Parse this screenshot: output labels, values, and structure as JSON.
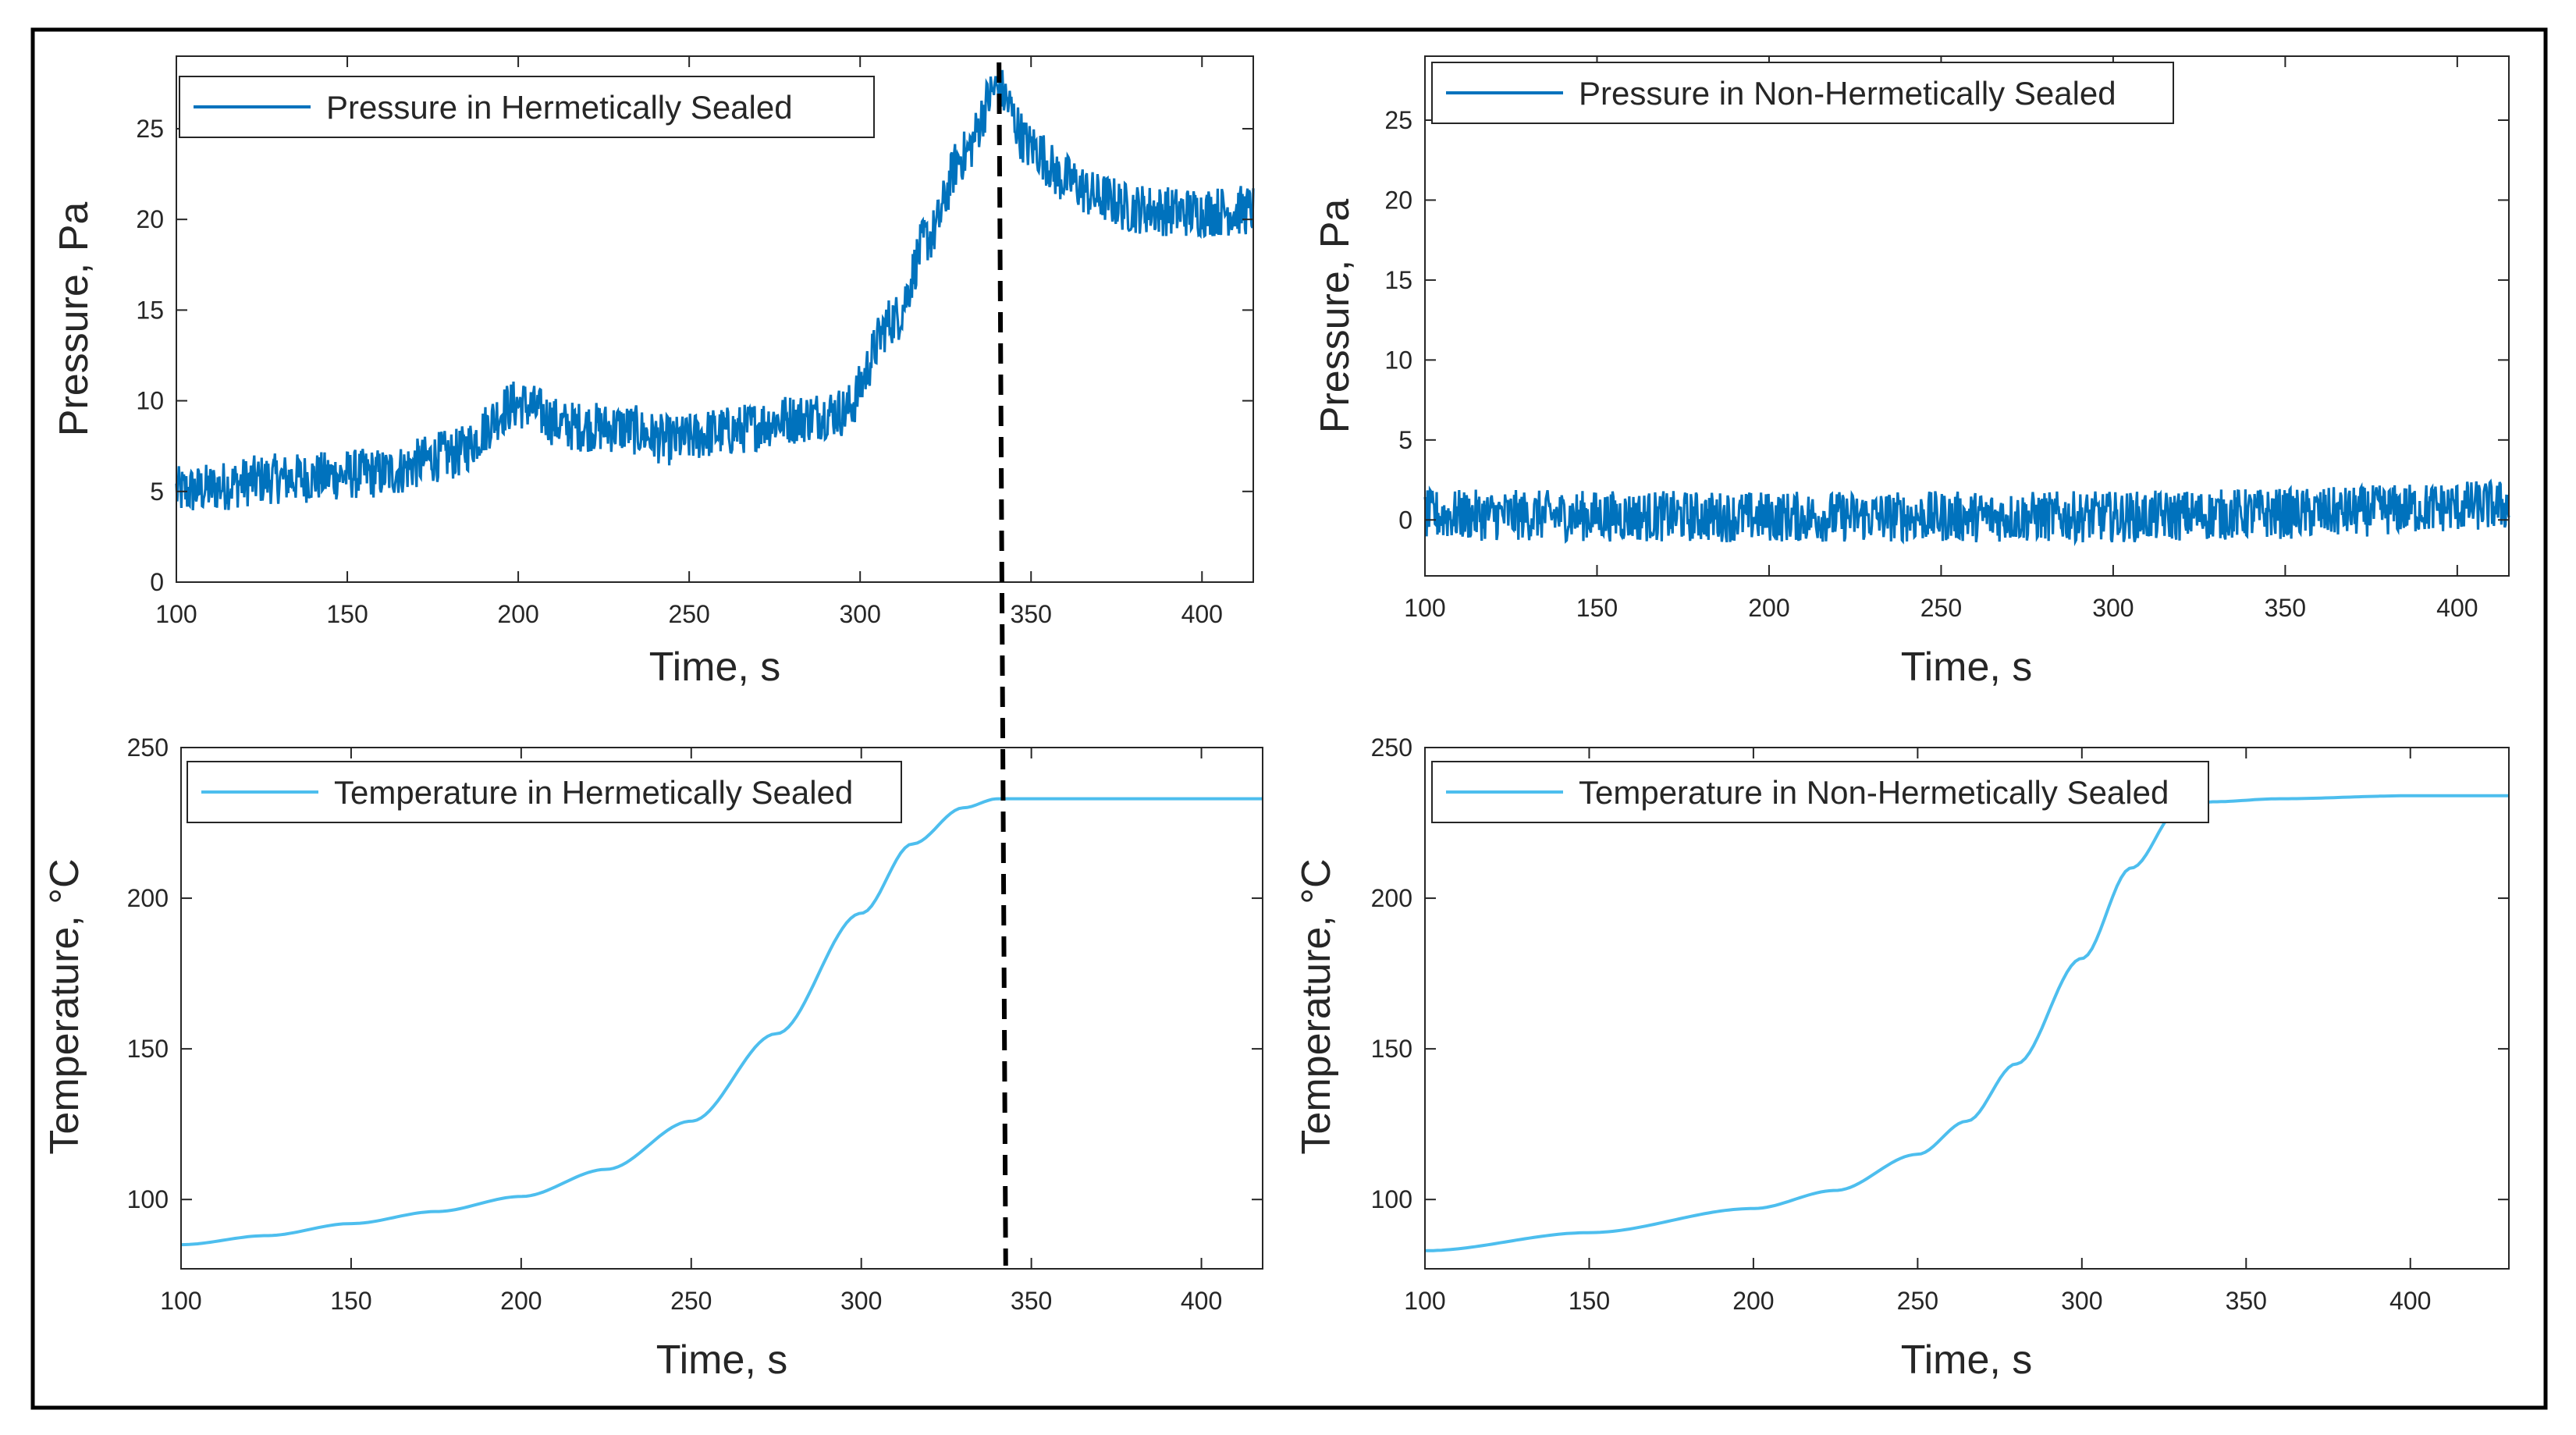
{
  "chart_data": [
    {
      "id": "p1",
      "type": "line",
      "xlabel": "Time, s",
      "ylabel": "Pressure, Pa",
      "xlim": [
        100,
        415
      ],
      "ylim": [
        0,
        29
      ],
      "xticks": [
        "100",
        "150",
        "200",
        "250",
        "300",
        "350",
        "400"
      ],
      "yticks": [
        "0",
        "5",
        "10",
        "15",
        "20",
        "25"
      ],
      "legend_position": "top-left",
      "noise": 1.4,
      "series": [
        {
          "name": "Pressure in Hermetically Sealed",
          "color": "#0072BD",
          "x": [
            100,
            130,
            160,
            180,
            200,
            215,
            230,
            245,
            260,
            280,
            295,
            310,
            320,
            330,
            340,
            350,
            360,
            370,
            380,
            395,
            415
          ],
          "y": [
            5.0,
            5.7,
            6.0,
            7.0,
            9.8,
            8.6,
            8.5,
            7.8,
            8.3,
            9.0,
            9.4,
            14.5,
            19.0,
            23.5,
            27.2,
            24.0,
            22.2,
            21.2,
            20.6,
            20.4,
            20.5
          ]
        }
      ]
    },
    {
      "id": "p2",
      "type": "line",
      "xlabel": "Time, s",
      "ylabel": "Pressure, Pa",
      "xlim": [
        100,
        415
      ],
      "ylim": [
        -3.5,
        29
      ],
      "xticks": [
        "100",
        "150",
        "200",
        "250",
        "300",
        "350",
        "400"
      ],
      "yticks": [
        "0",
        "5",
        "10",
        "15",
        "20",
        "25"
      ],
      "legend_position": "top-left",
      "noise": 1.6,
      "series": [
        {
          "name": "Pressure in Non-Hermetically Sealed",
          "color": "#0072BD",
          "x": [
            100,
            200,
            300,
            350,
            415
          ],
          "y": [
            0.3,
            0.2,
            0.2,
            0.4,
            0.9
          ]
        }
      ]
    },
    {
      "id": "t1",
      "type": "line",
      "xlabel": "Time, s",
      "ylabel": "Temperature, °C",
      "xlim": [
        100,
        418
      ],
      "ylim": [
        77,
        250
      ],
      "xticks": [
        "100",
        "150",
        "200",
        "250",
        "300",
        "350",
        "400"
      ],
      "yticks": [
        "100",
        "150",
        "200",
        "250"
      ],
      "legend_position": "top-left",
      "noise": 0,
      "series": [
        {
          "name": "Temperature in Hermetically Sealed",
          "color": "#4DBEEE",
          "x": [
            100,
            125,
            150,
            175,
            200,
            225,
            250,
            275,
            300,
            315,
            330,
            340,
            360,
            418
          ],
          "y": [
            85,
            88,
            92,
            96,
            101,
            110,
            126,
            155,
            195,
            218,
            230,
            233,
            233,
            233
          ]
        }
      ]
    },
    {
      "id": "t2",
      "type": "line",
      "xlabel": "Time, s",
      "ylabel": "Temperature, °C",
      "xlim": [
        100,
        430
      ],
      "ylim": [
        77,
        250
      ],
      "xticks": [
        "100",
        "150",
        "200",
        "250",
        "300",
        "350",
        "400"
      ],
      "yticks": [
        "100",
        "150",
        "200",
        "250"
      ],
      "legend_position": "top-left",
      "noise": 0,
      "series": [
        {
          "name": "Temperature in Non-Hermetically Sealed",
          "color": "#4DBEEE",
          "x": [
            100,
            150,
            200,
            225,
            250,
            265,
            280,
            300,
            315,
            330,
            340,
            360,
            400,
            430
          ],
          "y": [
            83,
            89,
            97,
            103,
            115,
            126,
            145,
            180,
            210,
            230,
            232,
            233,
            234,
            234
          ]
        }
      ]
    }
  ],
  "annotations": {
    "marker_line": {
      "style": "dashed",
      "color": "#000000",
      "x_time": 342
    }
  },
  "frame": {
    "border_color": "#000000"
  }
}
